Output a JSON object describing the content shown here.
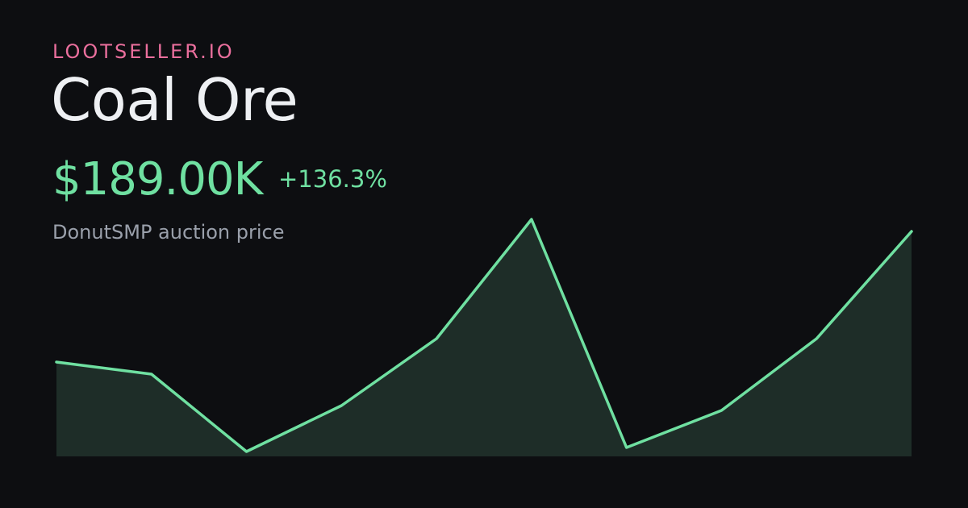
{
  "brand": "LOOTSELLER.IO",
  "item": {
    "name": "Coal Ore",
    "price": "$189.00K",
    "change": "+136.3%",
    "subtitle": "DonutSMP auction price"
  },
  "colors": {
    "brand": "#ea6f9d",
    "title": "#eef0f3",
    "accent": "#6fe0a1",
    "muted": "#9aa0ab",
    "area_fill": "#1e2d28",
    "background": "#0d0e11"
  },
  "chart_data": {
    "type": "area",
    "x": [
      1,
      2,
      3,
      4,
      5,
      6,
      7,
      8,
      9,
      10
    ],
    "series": [
      {
        "values": [
          117,
          102,
          6,
          63,
          146,
          294,
          11,
          57,
          146,
          279
        ]
      }
    ],
    "ylim": [
      0,
      300
    ],
    "grid": false,
    "legend": "none"
  }
}
